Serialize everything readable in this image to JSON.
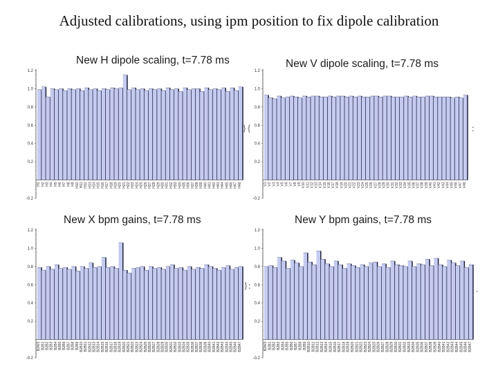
{
  "slide": {
    "title": "Adjusted calibrations, using ipm position to  fix dipole calibration"
  },
  "chart_data": [
    {
      "type": "bar",
      "title": "New H dipole scaling, t=7.78 ms",
      "ylim": [
        -0.2,
        1.2
      ],
      "yticks": [
        -0.2,
        0.2,
        0.4,
        0.6,
        0.8,
        1.0,
        1.2
      ],
      "bar_color": "#c5cbf0",
      "categories": [
        "H1",
        "H2",
        "H3",
        "H4",
        "H5",
        "H6",
        "H7",
        "H8",
        "H9",
        "H10",
        "H11",
        "H12",
        "H13",
        "H14",
        "H15",
        "H16",
        "H17",
        "H18",
        "H19",
        "H20",
        "H21",
        "H22",
        "H23",
        "H24",
        "H25",
        "H26",
        "H27",
        "H28",
        "H29",
        "H30",
        "H31",
        "H32",
        "H33",
        "H34",
        "H35",
        "H36",
        "H37",
        "H38",
        "H39",
        "H40",
        "H41",
        "H42",
        "H43",
        "H44",
        "H45",
        "H46",
        "H47",
        "H48"
      ],
      "values": [
        0.99,
        1.02,
        0.91,
        1.0,
        0.99,
        1.0,
        0.98,
        1.0,
        0.99,
        1.0,
        0.98,
        1.01,
        0.99,
        1.0,
        0.98,
        1.0,
        0.99,
        1.01,
        1.0,
        1.01,
        1.15,
        0.99,
        1.01,
        0.99,
        1.0,
        0.98,
        1.0,
        0.99,
        1.0,
        0.98,
        1.01,
        0.99,
        1.0,
        0.97,
        1.01,
        0.99,
        1.0,
        1.0,
        0.97,
        1.01,
        0.99,
        1.0,
        0.99,
        1.01,
        0.97,
        1.01,
        0.98,
        1.02
      ]
    },
    {
      "type": "bar",
      "title": "New V dipole scaling, t=7.78 ms",
      "ylim": [
        -0.2,
        1.2
      ],
      "yticks": [
        -0.2,
        0.2,
        0.4,
        0.6,
        0.8,
        1.0,
        1.2
      ],
      "bar_color": "#c5cbf0",
      "categories": [
        "V1",
        "V2",
        "V3",
        "V4",
        "V5",
        "V6",
        "V7",
        "V8",
        "V9",
        "V10",
        "V11",
        "V12",
        "V13",
        "V14",
        "V15",
        "V16",
        "V17",
        "V18",
        "V19",
        "V20",
        "V21",
        "V22",
        "V23",
        "V24",
        "V25",
        "V26",
        "V27",
        "V28",
        "V29",
        "V30",
        "V31",
        "V32",
        "V33",
        "V34",
        "V35",
        "V36",
        "V37",
        "V38",
        "V39",
        "V40",
        "V41",
        "V42",
        "V43",
        "V44",
        "V45",
        "V46",
        "V47",
        "V48"
      ],
      "values": [
        0.93,
        0.9,
        0.89,
        0.92,
        0.9,
        0.91,
        0.92,
        0.91,
        0.9,
        0.92,
        0.91,
        0.92,
        0.92,
        0.91,
        0.91,
        0.92,
        0.91,
        0.92,
        0.92,
        0.91,
        0.92,
        0.91,
        0.92,
        0.91,
        0.91,
        0.92,
        0.92,
        0.91,
        0.92,
        0.92,
        0.91,
        0.91,
        0.91,
        0.92,
        0.91,
        0.92,
        0.91,
        0.91,
        0.92,
        0.92,
        0.91,
        0.91,
        0.91,
        0.91,
        0.9,
        0.91,
        0.9,
        0.93
      ]
    },
    {
      "type": "bar",
      "title": "New X bpm gains, t=7.78 ms",
      "ylim": [
        -0.2,
        1.2
      ],
      "yticks": [
        -0.2,
        0.2,
        0.4,
        0.6,
        0.8,
        1.0,
        1.2
      ],
      "bar_color": "#c5cbf0",
      "categories": [
        "B2W3",
        "B2B1",
        "B2B2",
        "B2B3",
        "B2B4",
        "B2B5",
        "B2B6",
        "B2B7",
        "B2B8",
        "B2B9",
        "B2B10",
        "B2B11",
        "B2B12",
        "B2B13",
        "B2B14",
        "B2B15",
        "B2B16",
        "B2B17",
        "B2B18",
        "B2B19",
        "B2B20",
        "B2B21",
        "B2B22",
        "B2B23",
        "B2B24",
        "B2B25",
        "B2B26",
        "B2B27",
        "B2B28",
        "B2B29",
        "B2B30",
        "B2B31",
        "B2B32",
        "B2B33",
        "B2B34",
        "B2B35",
        "B2B36",
        "B2B37",
        "B2B38",
        "B2B39",
        "B2B40",
        "B2B41",
        "B2B42",
        "B2B43",
        "B2B44",
        "B2B45",
        "B2B46",
        "B2B47"
      ],
      "values": [
        0.79,
        0.76,
        0.8,
        0.77,
        0.82,
        0.78,
        0.79,
        0.77,
        0.8,
        0.75,
        0.8,
        0.78,
        0.84,
        0.79,
        0.8,
        0.9,
        0.79,
        0.8,
        0.78,
        1.06,
        0.76,
        0.73,
        0.78,
        0.79,
        0.8,
        0.76,
        0.8,
        0.78,
        0.79,
        0.77,
        0.8,
        0.82,
        0.78,
        0.79,
        0.76,
        0.8,
        0.77,
        0.79,
        0.78,
        0.82,
        0.8,
        0.78,
        0.76,
        0.79,
        0.81,
        0.77,
        0.79,
        0.8
      ]
    },
    {
      "type": "bar",
      "title": "New Y bpm gains, t=7.78 ms",
      "ylim": [
        -0.2,
        1.2
      ],
      "yticks": [
        -0.2,
        0.2,
        0.4,
        0.6,
        0.8,
        1.0,
        1.2
      ],
      "bar_color": "#c5cbf0",
      "categories": [
        "B2W3",
        "B2B1",
        "B2B2",
        "B2B3",
        "B2B4",
        "B2B5",
        "B2B6",
        "B2B7",
        "B2B8",
        "B2B9",
        "B2B10",
        "B2B11",
        "B2B12",
        "B2B13",
        "B2B14",
        "B2B15",
        "B2B16",
        "B2B17",
        "B2B18",
        "B2B19",
        "B2B20",
        "B2B21",
        "B2B22",
        "B2B23",
        "B2B24",
        "B2B25",
        "B2B26",
        "B2B27",
        "B2B28",
        "B2B29",
        "B2B30",
        "B2B31",
        "B2B32",
        "B2B33",
        "B2B34",
        "B2B35",
        "B2B36",
        "B2B37",
        "B2B38",
        "B2B39",
        "B2B40",
        "B2B41",
        "B2B42",
        "B2B43",
        "B2B44",
        "B2B45",
        "B2B46",
        "B2B47"
      ],
      "values": [
        0.8,
        0.81,
        0.79,
        0.9,
        0.86,
        0.78,
        0.87,
        0.84,
        0.8,
        0.95,
        0.85,
        0.82,
        0.97,
        0.88,
        0.83,
        0.8,
        0.86,
        0.82,
        0.78,
        0.83,
        0.81,
        0.79,
        0.82,
        0.8,
        0.84,
        0.85,
        0.8,
        0.83,
        0.79,
        0.86,
        0.82,
        0.81,
        0.8,
        0.86,
        0.8,
        0.83,
        0.82,
        0.88,
        0.81,
        0.89,
        0.82,
        0.8,
        0.87,
        0.84,
        0.81,
        0.86,
        0.79,
        0.82
      ]
    }
  ]
}
